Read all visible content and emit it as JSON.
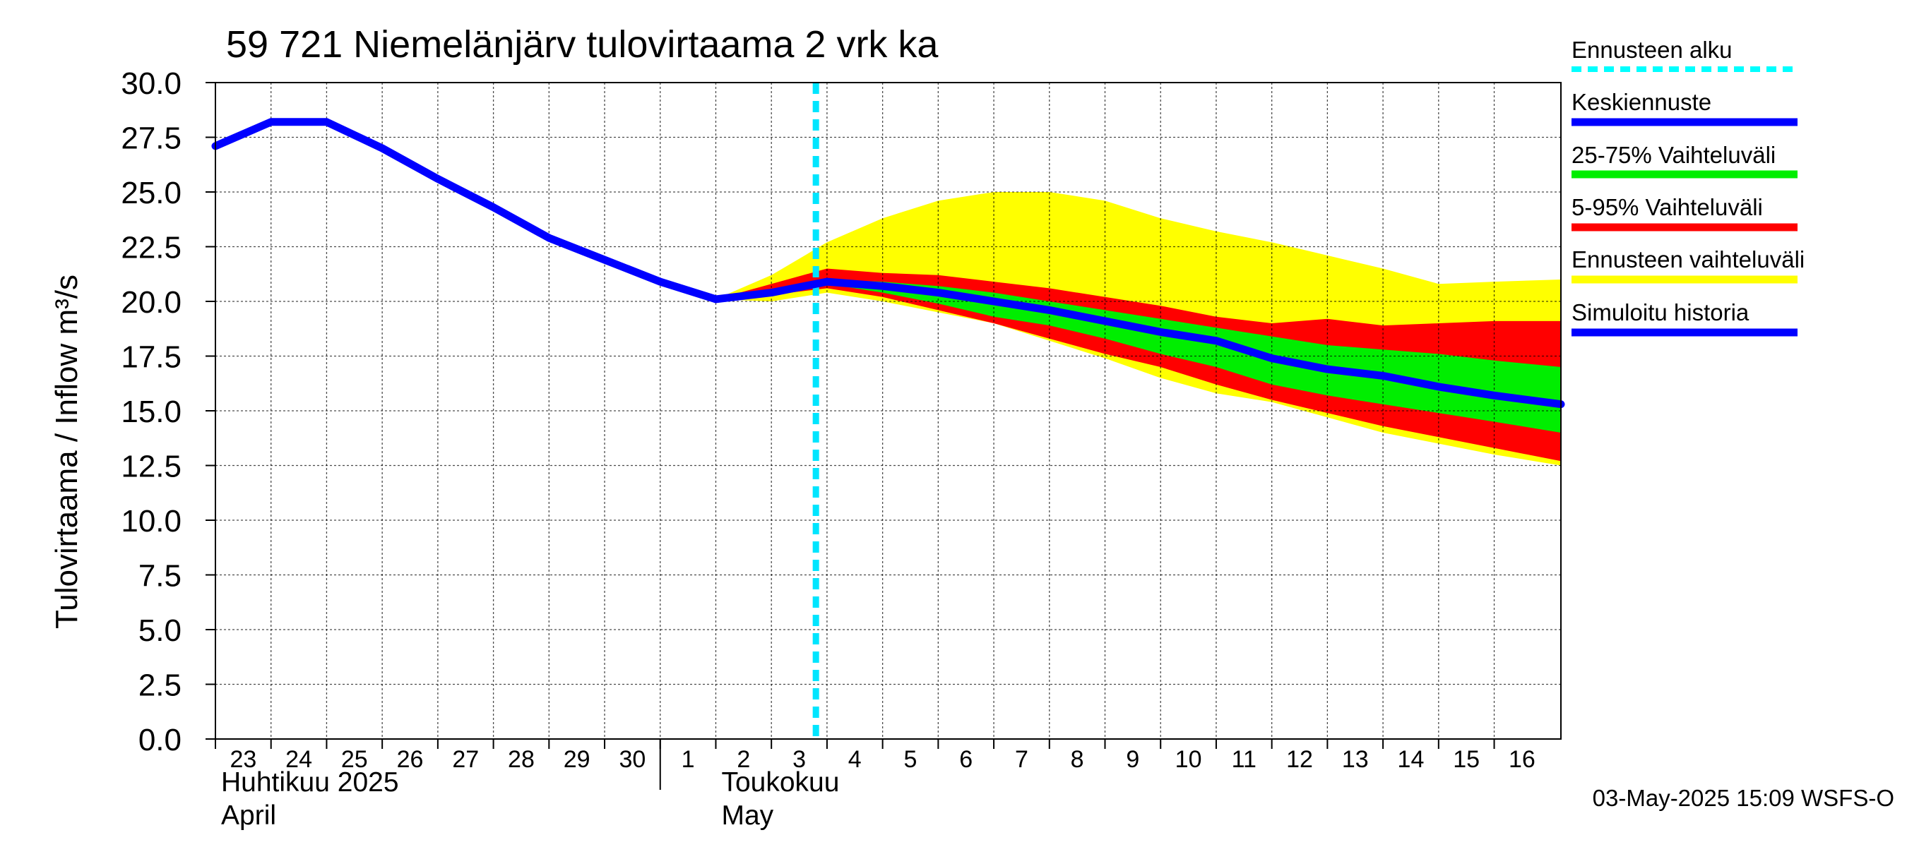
{
  "chart_data": {
    "type": "line",
    "title": "59 721 Niemelänjärv tulovirtaama 2 vrk ka",
    "ylabel": "Tulovirtaama / Inflow    m³/s",
    "xlabel": "",
    "ylim": [
      0,
      30
    ],
    "yticks": [
      "0.0",
      "2.5",
      "5.0",
      "7.5",
      "10.0",
      "12.5",
      "15.0",
      "17.5",
      "20.0",
      "22.5",
      "25.0",
      "27.5",
      "30.0"
    ],
    "ytick_values": [
      0,
      2.5,
      5,
      7.5,
      10,
      12.5,
      15,
      17.5,
      20,
      22.5,
      25,
      27.5,
      30
    ],
    "x_range": [
      0,
      24.2
    ],
    "day_ticks": [
      "23",
      "24",
      "25",
      "26",
      "27",
      "28",
      "29",
      "30",
      "1",
      "2",
      "3",
      "4",
      "5",
      "6",
      "7",
      "8",
      "9",
      "10",
      "11",
      "12",
      "13",
      "14",
      "15",
      "16"
    ],
    "month_labels": [
      {
        "line1": "Huhtikuu  2025",
        "line2": "April",
        "day_index": 0
      },
      {
        "line1": "Toukokuu",
        "line2": "May",
        "day_index": 9
      }
    ],
    "month_separator_day_index": 8,
    "forecast_start_x": 10.8,
    "grid": true,
    "series": [
      {
        "name": "Simuloitu historia",
        "color": "#0000ff",
        "x": [
          0,
          1,
          2,
          3,
          4,
          5,
          6,
          7,
          8,
          9
        ],
        "y": [
          27.1,
          28.2,
          28.2,
          27.0,
          25.6,
          24.3,
          22.9,
          21.9,
          20.9,
          20.1
        ]
      },
      {
        "name": "Keskiennuste",
        "color": "#0000ff",
        "x": [
          9,
          10,
          11,
          12,
          13,
          14,
          15,
          16,
          17,
          18,
          19,
          20,
          21,
          22,
          23,
          24.2
        ],
        "y": [
          20.1,
          20.4,
          20.9,
          20.7,
          20.4,
          20.0,
          19.6,
          19.1,
          18.6,
          18.2,
          17.4,
          16.9,
          16.6,
          16.1,
          15.7,
          15.3
        ]
      }
    ],
    "bands": [
      {
        "name": "Ennusteen vaihteluväli",
        "color": "#ffff00",
        "x": [
          9,
          10,
          11,
          12,
          13,
          14,
          15,
          16,
          17,
          18,
          19,
          20,
          21,
          22,
          23,
          24.2
        ],
        "upper": [
          20.1,
          21.2,
          22.7,
          23.8,
          24.6,
          25.0,
          25.0,
          24.6,
          23.8,
          23.2,
          22.7,
          22.1,
          21.5,
          20.8,
          20.9,
          21.0
        ],
        "lower": [
          20.1,
          20.0,
          20.4,
          20.0,
          19.5,
          19.0,
          18.2,
          17.4,
          16.5,
          15.8,
          15.4,
          14.7,
          14.0,
          13.5,
          13.0,
          12.5
        ]
      },
      {
        "name": "5-95% Vaihteluväli",
        "color": "#ff0000",
        "x": [
          9,
          10,
          11,
          12,
          13,
          14,
          15,
          16,
          17,
          18,
          19,
          20,
          21,
          22,
          23,
          24.2
        ],
        "upper": [
          20.1,
          20.8,
          21.5,
          21.3,
          21.2,
          20.9,
          20.6,
          20.2,
          19.8,
          19.3,
          19.0,
          19.2,
          18.9,
          19.0,
          19.1,
          19.1
        ],
        "lower": [
          20.1,
          20.3,
          20.6,
          20.2,
          19.6,
          19.0,
          18.3,
          17.6,
          17.0,
          16.2,
          15.5,
          14.9,
          14.3,
          13.8,
          13.3,
          12.7
        ]
      },
      {
        "name": "25-75% Vaihteluväli",
        "color": "#00ee00",
        "x": [
          9,
          10,
          11,
          12,
          13,
          14,
          15,
          16,
          17,
          18,
          19,
          20,
          21,
          22,
          23,
          24.2
        ],
        "upper": [
          20.1,
          20.5,
          21.0,
          20.9,
          20.7,
          20.4,
          20.0,
          19.6,
          19.2,
          18.8,
          18.4,
          18.0,
          17.8,
          17.6,
          17.3,
          17.0
        ],
        "lower": [
          20.1,
          20.3,
          20.8,
          20.4,
          19.9,
          19.3,
          18.9,
          18.3,
          17.6,
          17.0,
          16.2,
          15.7,
          15.3,
          14.9,
          14.5,
          14.0
        ]
      }
    ],
    "legend_position": "right"
  },
  "legend": [
    {
      "label": "Ennusteen alku",
      "color": "#00ffff",
      "style": "dashed"
    },
    {
      "label": "Keskiennuste",
      "color": "#0000ff",
      "style": "solid"
    },
    {
      "label": "25-75% Vaihteluväli",
      "color": "#00ee00",
      "style": "solid"
    },
    {
      "label": "5-95% Vaihteluväli",
      "color": "#ff0000",
      "style": "solid"
    },
    {
      "label": "Ennusteen vaihteluväli",
      "color": "#ffff00",
      "style": "solid"
    },
    {
      "label": "Simuloitu historia",
      "color": "#0000ff",
      "style": "solid"
    }
  ],
  "footer": "03-May-2025 15:09 WSFS-O"
}
